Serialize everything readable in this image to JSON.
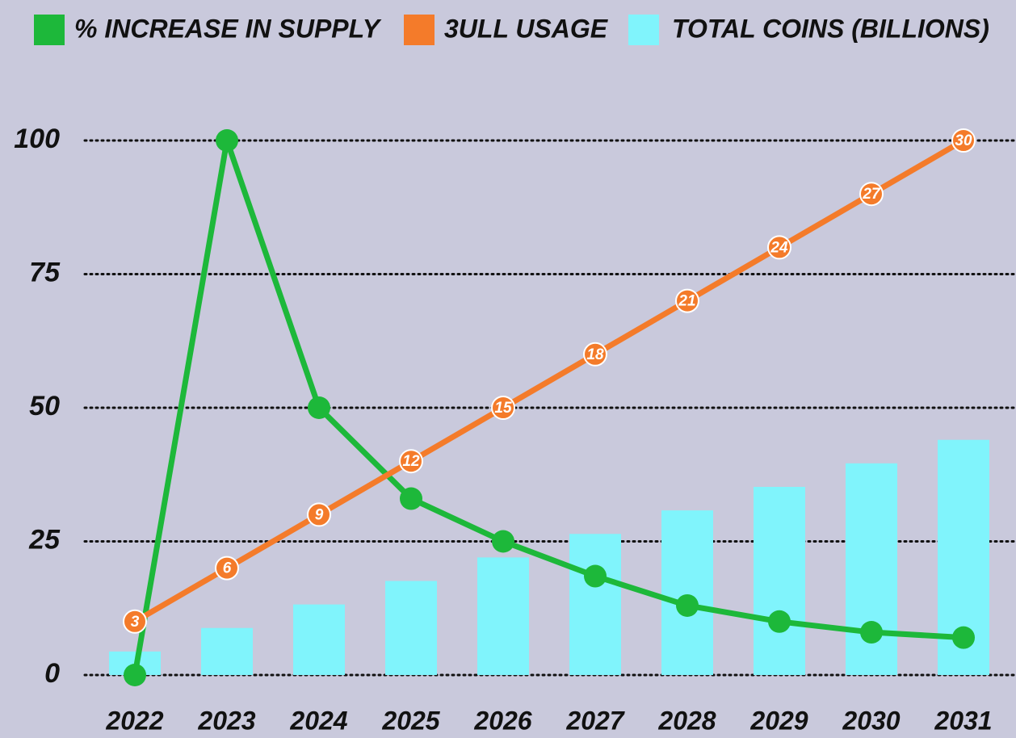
{
  "chart_data": {
    "type": "combo",
    "categories": [
      "2022",
      "2023",
      "2024",
      "2025",
      "2026",
      "2027",
      "2028",
      "2029",
      "2030",
      "2031"
    ],
    "series": [
      {
        "name": "% INCREASE IN SUPPLY",
        "type": "line",
        "color": "#1db83a",
        "values": [
          0,
          100,
          50,
          33,
          25,
          18.5,
          13,
          10,
          8,
          7
        ]
      },
      {
        "name": "3ULL USAGE",
        "type": "line",
        "color": "#f47b2a",
        "axis": "y2",
        "data_labels": true,
        "values": [
          3,
          6,
          9,
          12,
          15,
          18,
          21,
          24,
          27,
          30
        ]
      },
      {
        "name": "TOTAL COINS (BILLIONS)",
        "type": "bar",
        "color": "#80f4fc",
        "values": [
          4.4,
          8.8,
          13.2,
          17.6,
          22,
          26.4,
          30.8,
          35.2,
          39.6,
          44
        ]
      }
    ],
    "ylim": [
      0,
      100
    ],
    "yticks": [
      0,
      25,
      50,
      75,
      100
    ],
    "y2lim": [
      0,
      30
    ],
    "grid": true,
    "legend": "top"
  }
}
